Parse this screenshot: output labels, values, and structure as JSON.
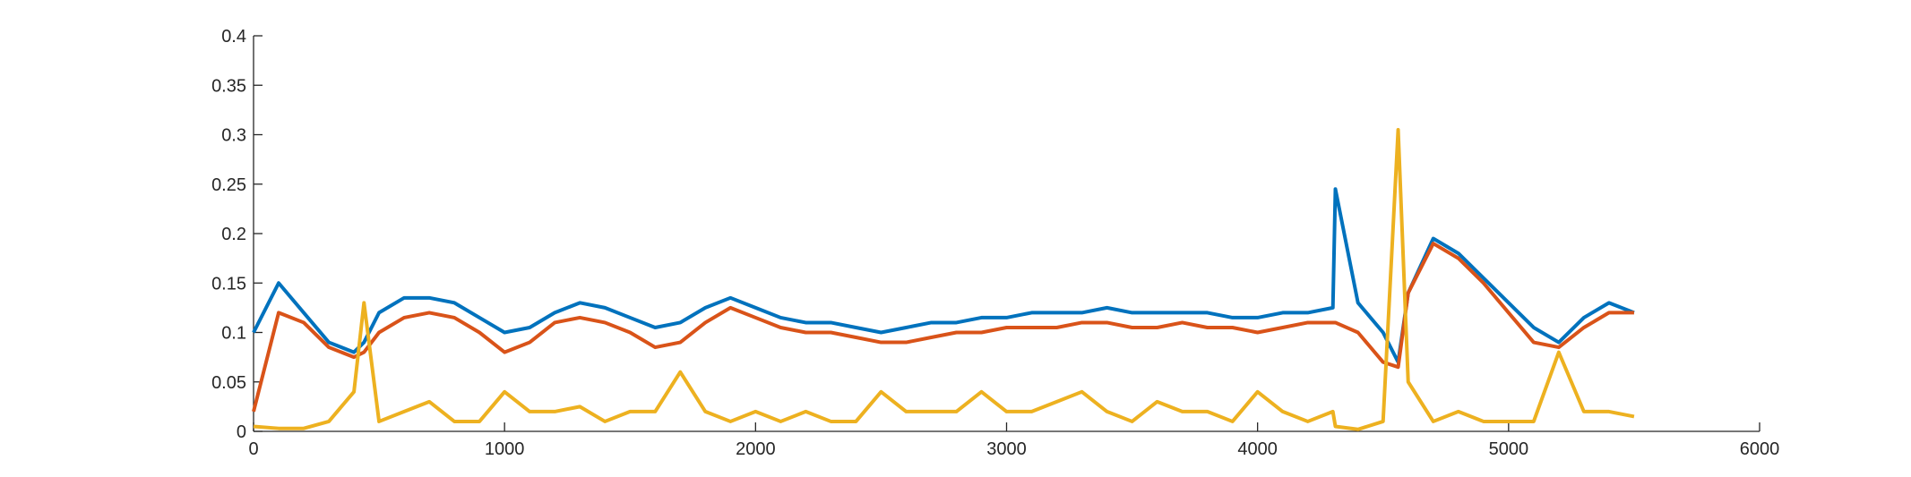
{
  "chart_data": {
    "type": "line",
    "x": [
      0,
      100,
      200,
      300,
      400,
      440,
      500,
      600,
      700,
      800,
      900,
      1000,
      1100,
      1200,
      1300,
      1400,
      1500,
      1600,
      1700,
      1800,
      1900,
      2000,
      2100,
      2200,
      2300,
      2400,
      2500,
      2600,
      2700,
      2800,
      2900,
      3000,
      3100,
      3200,
      3300,
      3400,
      3500,
      3600,
      3700,
      3800,
      3900,
      4000,
      4100,
      4200,
      4300,
      4310,
      4400,
      4500,
      4560,
      4600,
      4700,
      4800,
      4900,
      5000,
      5100,
      5200,
      5300,
      5400,
      5500
    ],
    "series": [
      {
        "color": "#0072BD",
        "values": [
          0.1,
          0.15,
          0.12,
          0.09,
          0.08,
          0.09,
          0.12,
          0.135,
          0.135,
          0.13,
          0.115,
          0.1,
          0.105,
          0.12,
          0.13,
          0.125,
          0.115,
          0.105,
          0.11,
          0.125,
          0.135,
          0.125,
          0.115,
          0.11,
          0.11,
          0.105,
          0.1,
          0.105,
          0.11,
          0.11,
          0.115,
          0.115,
          0.12,
          0.12,
          0.12,
          0.125,
          0.12,
          0.12,
          0.12,
          0.12,
          0.115,
          0.115,
          0.12,
          0.12,
          0.125,
          0.245,
          0.13,
          0.1,
          0.07,
          0.14,
          0.195,
          0.18,
          0.155,
          0.13,
          0.105,
          0.09,
          0.115,
          0.13,
          0.12
        ]
      },
      {
        "color": "#D95319",
        "values": [
          0.02,
          0.12,
          0.11,
          0.085,
          0.075,
          0.08,
          0.1,
          0.115,
          0.12,
          0.115,
          0.1,
          0.08,
          0.09,
          0.11,
          0.115,
          0.11,
          0.1,
          0.085,
          0.09,
          0.11,
          0.125,
          0.115,
          0.105,
          0.1,
          0.1,
          0.095,
          0.09,
          0.09,
          0.095,
          0.1,
          0.1,
          0.105,
          0.105,
          0.105,
          0.11,
          0.11,
          0.105,
          0.105,
          0.11,
          0.105,
          0.105,
          0.1,
          0.105,
          0.11,
          0.11,
          0.11,
          0.1,
          0.07,
          0.065,
          0.14,
          0.19,
          0.175,
          0.15,
          0.12,
          0.09,
          0.085,
          0.105,
          0.12,
          0.12
        ]
      },
      {
        "color": "#EDB120",
        "values": [
          0.005,
          0.003,
          0.003,
          0.01,
          0.04,
          0.13,
          0.01,
          0.02,
          0.03,
          0.01,
          0.01,
          0.04,
          0.02,
          0.02,
          0.025,
          0.01,
          0.02,
          0.02,
          0.06,
          0.02,
          0.01,
          0.02,
          0.01,
          0.02,
          0.01,
          0.01,
          0.04,
          0.02,
          0.02,
          0.02,
          0.04,
          0.02,
          0.02,
          0.03,
          0.04,
          0.02,
          0.01,
          0.03,
          0.02,
          0.02,
          0.01,
          0.04,
          0.02,
          0.01,
          0.02,
          0.005,
          0.002,
          0.01,
          0.305,
          0.05,
          0.01,
          0.02,
          0.01,
          0.01,
          0.01,
          0.08,
          0.02,
          0.02,
          0.015
        ]
      }
    ],
    "xlim": [
      0,
      6000
    ],
    "xticks": [
      0,
      1000,
      2000,
      3000,
      4000,
      5000,
      6000
    ],
    "ylim": [
      0,
      0.4
    ],
    "yticks": [
      0,
      0.05,
      0.1,
      0.15,
      0.2,
      0.25,
      0.3,
      0.35,
      0.4
    ]
  }
}
